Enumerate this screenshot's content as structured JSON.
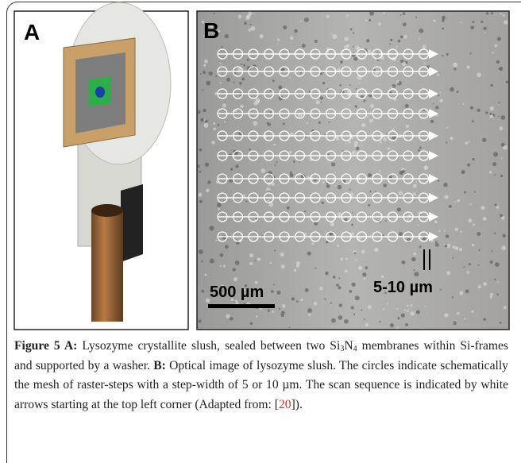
{
  "figure": {
    "panels": [
      {
        "label": "A"
      },
      {
        "label": "B",
        "scale_bar": "500 µm",
        "step_label": "5-10 µm"
      }
    ],
    "caption": [
      "Figure 5 A:",
      " Lysozyme crystallite slush, sealed between two Si",
      "3",
      "N",
      "4",
      " membranes within Si-frames and supported by a washer. ",
      "B:",
      " Optical image of lysozyme slush. The circles indicate schematically the mesh of raster-steps with a step-width of 5 or 10 µm. The scan sequence is indicated by white arrows starting at the top left corner (Adapted from: [",
      "20",
      "])."
    ]
  }
}
